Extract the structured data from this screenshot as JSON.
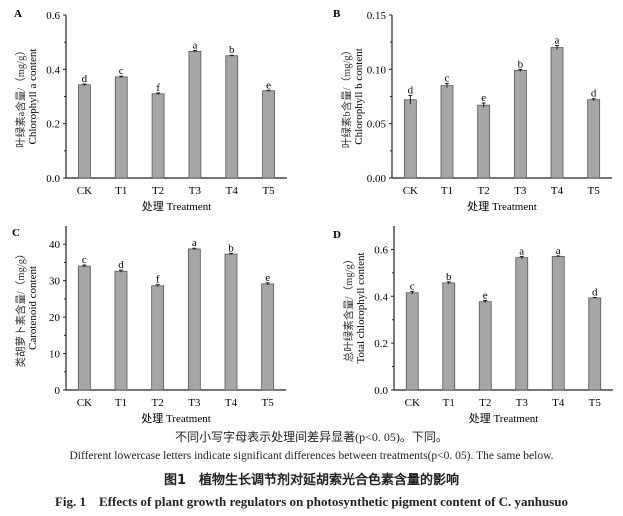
{
  "chart_data": [
    {
      "type": "bar",
      "panel": "A",
      "categories": [
        "CK",
        "T1",
        "T2",
        "T3",
        "T4",
        "T5"
      ],
      "values": [
        0.343,
        0.372,
        0.31,
        0.466,
        0.45,
        0.321
      ],
      "errors": [
        0.003,
        0.003,
        0.003,
        0.003,
        0.002,
        0.002
      ],
      "letters": [
        "d",
        "c",
        "f",
        "a",
        "b",
        "e"
      ],
      "ylabel_cn": "叶绿素a含量/（mg/g）",
      "ylabel_en": "Chlorophyll a content",
      "xlabel": "处理  Treatment",
      "ylim": [
        0,
        0.6
      ],
      "yticks": [
        "0.0",
        "0.2",
        "0.4",
        "0.6"
      ],
      "tickvals": [
        0,
        0.2,
        0.4,
        0.6
      ]
    },
    {
      "type": "bar",
      "panel": "B",
      "categories": [
        "CK",
        "T1",
        "T2",
        "T3",
        "T4",
        "T5"
      ],
      "values": [
        0.072,
        0.085,
        0.067,
        0.099,
        0.12,
        0.072
      ],
      "errors": [
        0.004,
        0.002,
        0.002,
        0.001,
        0.002,
        0.001
      ],
      "letters": [
        "d",
        "c",
        "e",
        "b",
        "a",
        "d"
      ],
      "ylabel_cn": "叶绿素b含量/（mg/g）",
      "ylabel_en": "Chlorophyll b content",
      "xlabel": "处理  Treatment",
      "ylim": [
        0,
        0.15
      ],
      "yticks": [
        "0.00",
        "0.05",
        "0.10",
        "0.15"
      ],
      "tickvals": [
        0,
        0.05,
        0.1,
        0.15
      ]
    },
    {
      "type": "bar",
      "panel": "C",
      "categories": [
        "CK",
        "T1",
        "T2",
        "T3",
        "T4",
        "T5"
      ],
      "values": [
        34.0,
        32.6,
        28.6,
        38.7,
        37.3,
        29.1
      ],
      "errors": [
        0.3,
        0.3,
        0.3,
        0.2,
        0.2,
        0.3
      ],
      "letters": [
        "c",
        "d",
        "f",
        "a",
        "b",
        "e"
      ],
      "ylabel_cn": "类胡萝卜素含量/（mg/g）",
      "ylabel_en": "Carotenoid content",
      "xlabel": "处理  Treatment",
      "ylim": [
        0,
        45
      ],
      "yticks": [
        "0",
        "10",
        "20",
        "30",
        "40"
      ],
      "tickvals": [
        0,
        10,
        20,
        30,
        40
      ]
    },
    {
      "type": "bar",
      "panel": "D",
      "categories": [
        "CK",
        "T1",
        "T2",
        "T3",
        "T4",
        "T5"
      ],
      "values": [
        0.415,
        0.457,
        0.377,
        0.565,
        0.57,
        0.393
      ],
      "errors": [
        0.006,
        0.005,
        0.005,
        0.005,
        0.002,
        0.002
      ],
      "letters": [
        "c",
        "b",
        "e",
        "a",
        "a",
        "d"
      ],
      "ylabel_cn": "总叶绿素含量/（mg/g）",
      "ylabel_en": "Total chlorophyll content",
      "xlabel": "处理  Treatment",
      "ylim": [
        0,
        0.7
      ],
      "yticks": [
        "0.0",
        "0.2",
        "0.4",
        "0.6"
      ],
      "tickvals": [
        0,
        0.2,
        0.4,
        0.6
      ]
    }
  ],
  "caption": {
    "note_cn": "不同小写字母表示处理间差异显著(p<0. 05)。下同。",
    "note_en": "Different lowercase letters indicate significant differences between treatments(p<0. 05). The same below.",
    "title_cn": "图1　植物生长调节剂对延胡索光合色素含量的影响",
    "title_en": "Fig. 1　Effects of plant growth regulators on photosynthetic pigment content of C. yanhusuo"
  },
  "colors": {
    "bar": "#a6a6a6",
    "axis": "#222222"
  }
}
